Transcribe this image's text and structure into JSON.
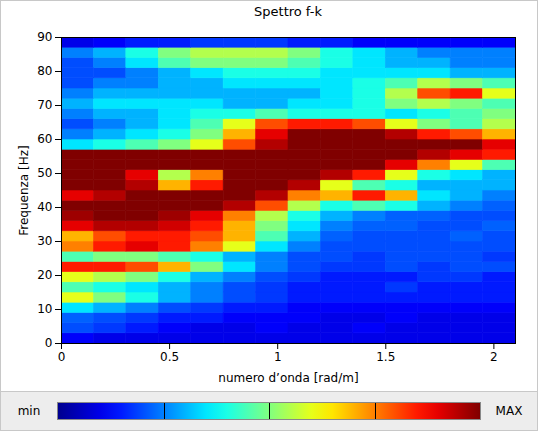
{
  "chart_data": {
    "type": "heatmap",
    "title": "Spettro f-k",
    "xlabel": "numero d’onda [rad/m]",
    "ylabel": "Frequenza [Hz]",
    "xlim": [
      0,
      2.1
    ],
    "ylim": [
      0,
      90
    ],
    "xticks": [
      0,
      0.5,
      1,
      1.5,
      2
    ],
    "yticks": [
      0,
      10,
      20,
      30,
      40,
      50,
      60,
      70,
      80,
      90
    ],
    "x_edges": [
      0,
      0.15,
      0.3,
      0.45,
      0.6,
      0.75,
      0.9,
      1.05,
      1.2,
      1.35,
      1.5,
      1.65,
      1.8,
      1.95,
      2.1
    ],
    "y_edges": [
      0,
      3,
      6,
      9,
      12,
      15,
      18,
      21,
      24,
      27,
      30,
      33,
      36,
      39,
      42,
      45,
      48,
      51,
      54,
      57,
      60,
      63,
      66,
      69,
      72,
      75,
      78,
      81,
      84,
      87,
      90
    ],
    "cells": [
      [
        0.12,
        0.1,
        0.1,
        0.1,
        0.1,
        0.1,
        0.1,
        0.1,
        0.1,
        0.1,
        0.1,
        0.1,
        0.1,
        0.1
      ],
      [
        0.2,
        0.18,
        0.15,
        0.12,
        0.1,
        0.1,
        0.12,
        0.1,
        0.1,
        0.12,
        0.1,
        0.1,
        0.1,
        0.1
      ],
      [
        0.22,
        0.2,
        0.18,
        0.15,
        0.15,
        0.12,
        0.12,
        0.12,
        0.1,
        0.1,
        0.12,
        0.1,
        0.1,
        0.1
      ],
      [
        0.35,
        0.3,
        0.25,
        0.2,
        0.18,
        0.15,
        0.15,
        0.12,
        0.12,
        0.12,
        0.12,
        0.12,
        0.12,
        0.12
      ],
      [
        0.6,
        0.5,
        0.4,
        0.3,
        0.25,
        0.2,
        0.18,
        0.15,
        0.15,
        0.15,
        0.15,
        0.15,
        0.15,
        0.15
      ],
      [
        0.45,
        0.4,
        0.35,
        0.3,
        0.25,
        0.2,
        0.18,
        0.15,
        0.15,
        0.15,
        0.18,
        0.15,
        0.15,
        0.15
      ],
      [
        0.6,
        0.55,
        0.5,
        0.4,
        0.3,
        0.25,
        0.2,
        0.18,
        0.15,
        0.15,
        0.15,
        0.18,
        0.18,
        0.15
      ],
      [
        0.85,
        0.85,
        0.8,
        0.7,
        0.5,
        0.35,
        0.25,
        0.2,
        0.18,
        0.18,
        0.2,
        0.18,
        0.2,
        0.2
      ],
      [
        0.45,
        0.5,
        0.5,
        0.45,
        0.4,
        0.3,
        0.25,
        0.2,
        0.2,
        0.18,
        0.2,
        0.2,
        0.2,
        0.18
      ],
      [
        0.75,
        0.85,
        0.9,
        0.85,
        0.75,
        0.6,
        0.35,
        0.25,
        0.2,
        0.2,
        0.2,
        0.2,
        0.2,
        0.2
      ],
      [
        0.7,
        0.8,
        0.85,
        0.85,
        0.8,
        0.7,
        0.45,
        0.3,
        0.22,
        0.2,
        0.2,
        0.2,
        0.22,
        0.2
      ],
      [
        0.9,
        0.95,
        0.95,
        0.92,
        0.85,
        0.7,
        0.5,
        0.35,
        0.25,
        0.22,
        0.22,
        0.2,
        0.2,
        0.22
      ],
      [
        0.97,
        1,
        1,
        0.97,
        0.9,
        0.75,
        0.55,
        0.4,
        0.3,
        0.25,
        0.22,
        0.22,
        0.2,
        0.2
      ],
      [
        1,
        1,
        1,
        1,
        1,
        0.95,
        0.8,
        0.55,
        0.4,
        0.45,
        0.4,
        0.3,
        0.25,
        0.22
      ],
      [
        0.9,
        0.95,
        1,
        1,
        1,
        1,
        0.95,
        0.75,
        0.7,
        0.85,
        0.7,
        0.35,
        0.3,
        0.25
      ],
      [
        1,
        1,
        0.95,
        0.7,
        0.85,
        1,
        1,
        0.95,
        0.6,
        0.45,
        0.4,
        0.3,
        0.3,
        0.3
      ],
      [
        1,
        1,
        0.9,
        0.55,
        0.75,
        1,
        1,
        1,
        0.95,
        0.85,
        0.6,
        0.4,
        0.35,
        0.3
      ],
      [
        1,
        1,
        1,
        1,
        1,
        1,
        1,
        1,
        1,
        1,
        0.9,
        0.75,
        0.6,
        0.45
      ],
      [
        1,
        1,
        1,
        1,
        1,
        1,
        1,
        1,
        1,
        1,
        1,
        0.95,
        0.9,
        0.85
      ],
      [
        0.35,
        0.4,
        0.45,
        0.5,
        0.6,
        0.8,
        0.95,
        1,
        1,
        1,
        1,
        1,
        1,
        0.9
      ],
      [
        0.25,
        0.3,
        0.35,
        0.4,
        0.5,
        0.7,
        0.9,
        1,
        1,
        1,
        0.95,
        0.85,
        0.8,
        0.7
      ],
      [
        0.2,
        0.25,
        0.3,
        0.35,
        0.45,
        0.6,
        0.8,
        0.85,
        0.85,
        0.8,
        0.6,
        0.5,
        0.45,
        0.55
      ],
      [
        0.25,
        0.3,
        0.3,
        0.35,
        0.4,
        0.4,
        0.45,
        0.4,
        0.4,
        0.4,
        0.35,
        0.4,
        0.45,
        0.5
      ],
      [
        0.3,
        0.35,
        0.35,
        0.35,
        0.35,
        0.3,
        0.3,
        0.35,
        0.35,
        0.4,
        0.5,
        0.55,
        0.5,
        0.45
      ],
      [
        0.25,
        0.3,
        0.3,
        0.3,
        0.3,
        0.3,
        0.3,
        0.3,
        0.35,
        0.4,
        0.55,
        0.8,
        0.85,
        0.6
      ],
      [
        0.2,
        0.25,
        0.25,
        0.3,
        0.3,
        0.35,
        0.35,
        0.35,
        0.35,
        0.4,
        0.45,
        0.55,
        0.5,
        0.45
      ],
      [
        0.2,
        0.2,
        0.25,
        0.3,
        0.35,
        0.4,
        0.4,
        0.4,
        0.35,
        0.35,
        0.35,
        0.35,
        0.3,
        0.3
      ],
      [
        0.2,
        0.25,
        0.35,
        0.45,
        0.5,
        0.5,
        0.5,
        0.45,
        0.4,
        0.35,
        0.3,
        0.3,
        0.25,
        0.25
      ],
      [
        0.25,
        0.3,
        0.4,
        0.5,
        0.55,
        0.55,
        0.55,
        0.5,
        0.4,
        0.35,
        0.3,
        0.25,
        0.25,
        0.25
      ],
      [
        0.1,
        0.12,
        0.15,
        0.15,
        0.18,
        0.18,
        0.18,
        0.15,
        0.15,
        0.12,
        0.12,
        0.12,
        0.12,
        0.12
      ]
    ],
    "colorbar_range": [
      0,
      1
    ],
    "colorbar_ticks": [
      {
        "value": 0,
        "label": "min"
      },
      {
        "value": 1,
        "label": "MAX"
      }
    ]
  }
}
